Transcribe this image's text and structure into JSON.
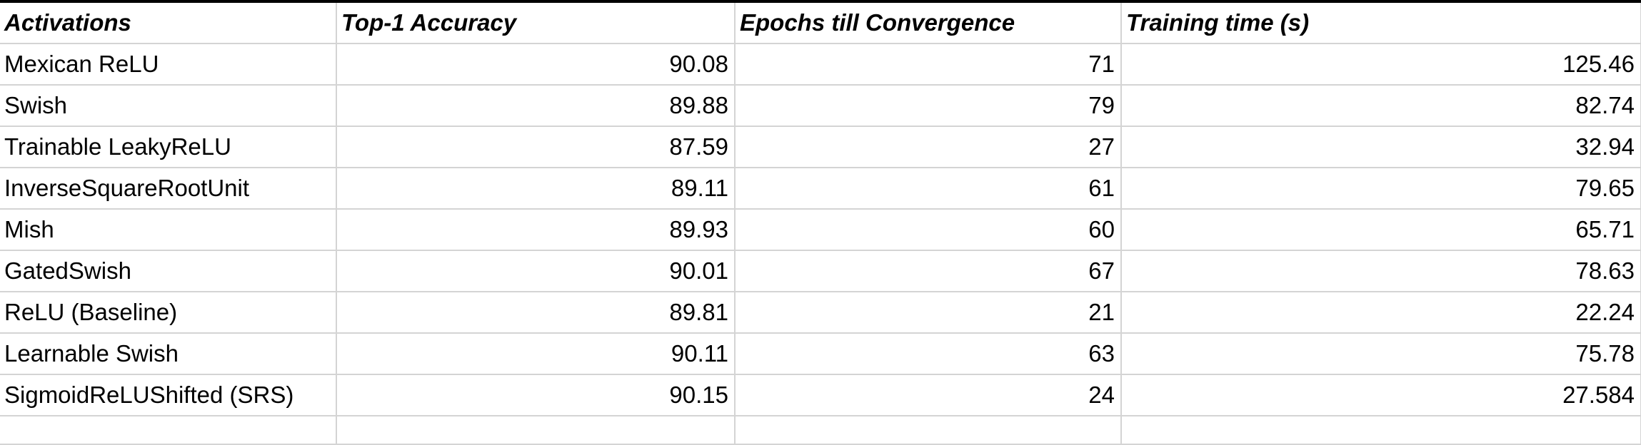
{
  "table": {
    "headers": [
      "Activations",
      "Top-1 Accuracy",
      "Epochs till Convergence",
      "Training time (s)"
    ],
    "rows": [
      [
        "Mexican ReLU",
        "90.08",
        "71",
        "125.46"
      ],
      [
        "Swish",
        "89.88",
        "79",
        "82.74"
      ],
      [
        "Trainable LeakyReLU",
        "87.59",
        "27",
        "32.94"
      ],
      [
        "InverseSquareRootUnit",
        "89.11",
        "61",
        "79.65"
      ],
      [
        "Mish",
        "89.93",
        "60",
        "65.71"
      ],
      [
        "GatedSwish",
        "90.01",
        "67",
        "78.63"
      ],
      [
        "ReLU (Baseline)",
        "89.81",
        "21",
        "22.24"
      ],
      [
        "Learnable Swish",
        "90.11",
        "63",
        "75.78"
      ],
      [
        "SigmoidReLUShifted (SRS)",
        "90.15",
        "24",
        "27.584"
      ]
    ]
  }
}
